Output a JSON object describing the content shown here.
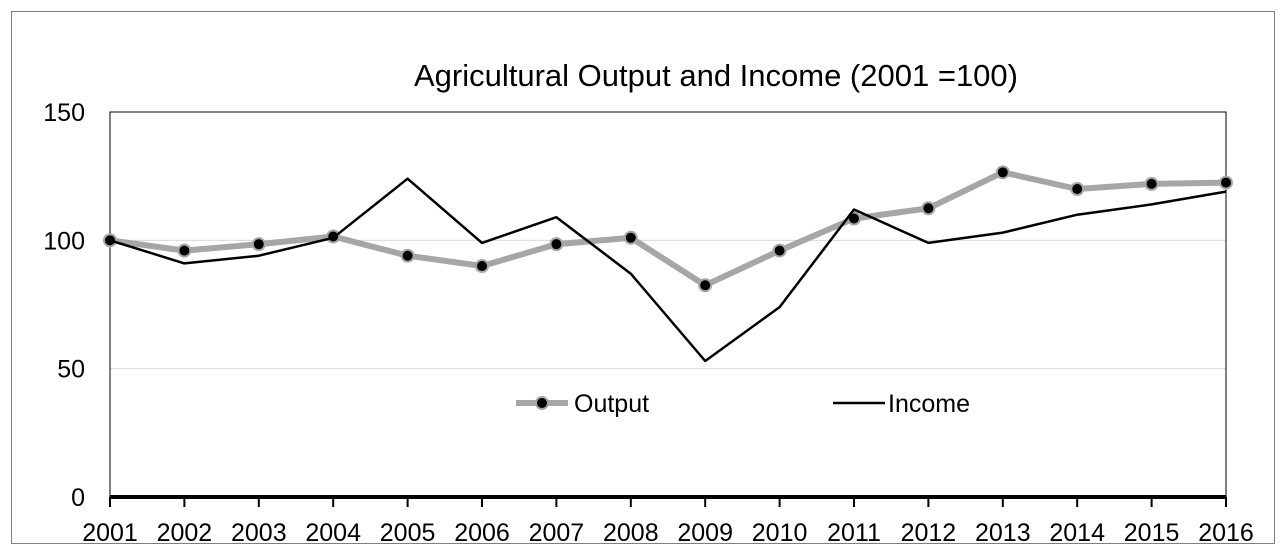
{
  "chart_data": {
    "type": "line",
    "title": "Agricultural Output and Income (2001 =100)",
    "xlabel": "",
    "ylabel": "",
    "categories": [
      "2001",
      "2002",
      "2003",
      "2004",
      "2005",
      "2006",
      "2007",
      "2008",
      "2009",
      "2010",
      "2011",
      "2012",
      "2013",
      "2014",
      "2015",
      "2016"
    ],
    "ylim": [
      0,
      150
    ],
    "yticks": [
      "0",
      "50",
      "100",
      "150"
    ],
    "grid": true,
    "legend": "center",
    "series": [
      {
        "name": "Output",
        "color": "#a6a6a6",
        "marker": "circle",
        "marker_color": "#000000",
        "values": [
          100,
          96,
          98.5,
          101.5,
          94,
          90,
          98.5,
          101,
          82.5,
          96,
          108.5,
          112.5,
          126.5,
          120,
          122,
          122.5
        ]
      },
      {
        "name": "Income",
        "color": "#000000",
        "marker": "none",
        "values": [
          100,
          91,
          94,
          101,
          124,
          99,
          109,
          87,
          53,
          74,
          112,
          99,
          103,
          110,
          114,
          119
        ]
      }
    ]
  }
}
